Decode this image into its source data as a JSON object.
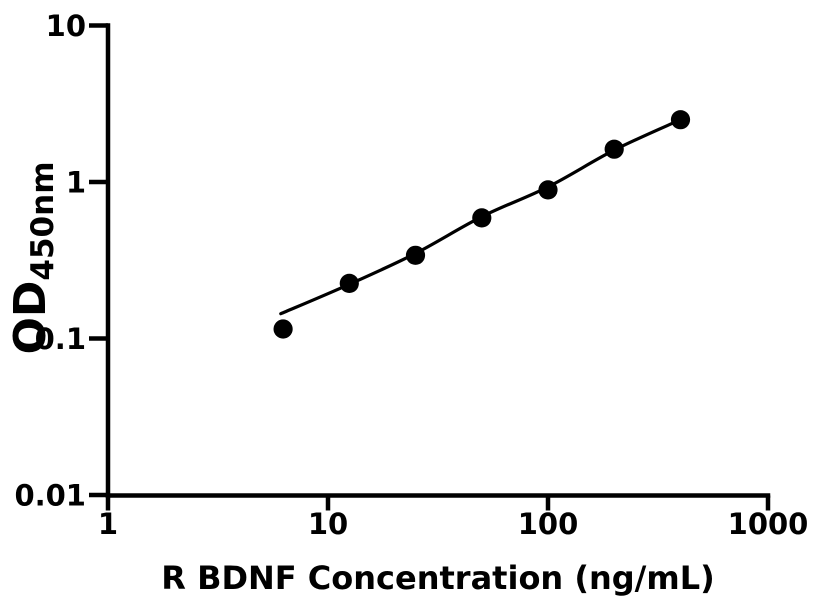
{
  "chart_data": {
    "type": "scatter",
    "title": "",
    "xlabel": "R BDNF Concentration (ng/mL)",
    "ylabel": "OD",
    "ylabel_subscript": "450nm",
    "xscale": "log",
    "yscale": "log",
    "xlim": [
      1,
      1000
    ],
    "ylim": [
      0.01,
      10
    ],
    "grid": false,
    "legend": false,
    "x_ticks": [
      {
        "value": 1,
        "label": "1"
      },
      {
        "value": 10,
        "label": "10"
      },
      {
        "value": 100,
        "label": "100"
      },
      {
        "value": 1000,
        "label": "1000"
      }
    ],
    "y_ticks": [
      {
        "value": 10,
        "label": "10"
      },
      {
        "value": 1,
        "label": "1"
      },
      {
        "value": 0.1,
        "label": "0.1"
      },
      {
        "value": 0.01,
        "label": "0.01"
      }
    ],
    "series": [
      {
        "marker": "circle",
        "color": "#000000",
        "points": [
          {
            "x": 6.25,
            "y": 0.115
          },
          {
            "x": 12.5,
            "y": 0.225
          },
          {
            "x": 25,
            "y": 0.34
          },
          {
            "x": 50,
            "y": 0.59
          },
          {
            "x": 100,
            "y": 0.89
          },
          {
            "x": 200,
            "y": 1.62
          },
          {
            "x": 400,
            "y": 2.5
          }
        ]
      }
    ],
    "fit_curve": [
      {
        "x": 6.1,
        "y": 0.144
      },
      {
        "x": 12.5,
        "y": 0.222
      },
      {
        "x": 25,
        "y": 0.35
      },
      {
        "x": 50,
        "y": 0.6
      },
      {
        "x": 100,
        "y": 0.93
      },
      {
        "x": 200,
        "y": 1.6
      },
      {
        "x": 400,
        "y": 2.5
      }
    ],
    "colors": {
      "foreground": "#000000",
      "background": "#ffffff"
    }
  }
}
